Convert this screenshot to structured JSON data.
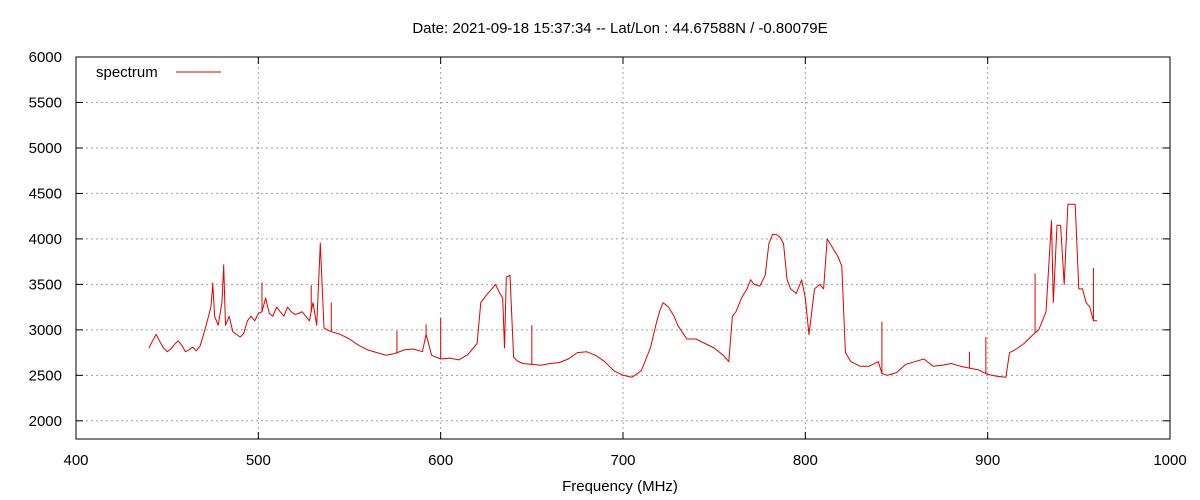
{
  "chart_data": {
    "type": "line",
    "title": "Date: 2021-09-18 15:37:34  --  Lat/Lon : 44.67588N / -0.80079E",
    "xlabel": "Frequency (MHz)",
    "ylabel": "",
    "xlim": [
      400,
      1000
    ],
    "ylim": [
      1800,
      6000
    ],
    "xticks": [
      400,
      500,
      600,
      700,
      800,
      900,
      1000
    ],
    "yticks": [
      2000,
      2500,
      3000,
      3500,
      4000,
      4500,
      5000,
      5500,
      6000
    ],
    "grid": true,
    "legend_position": "top-left",
    "series": [
      {
        "name": "spectrum",
        "color": "#e00000",
        "x": [
          440,
          442,
          444,
          446,
          448,
          450,
          452,
          454,
          456,
          458,
          460,
          462,
          464,
          466,
          468,
          470,
          472,
          474,
          475,
          476,
          478,
          480,
          481,
          482,
          484,
          486,
          488,
          490,
          492,
          494,
          496,
          498,
          500,
          502,
          504,
          506,
          508,
          510,
          512,
          514,
          516,
          518,
          520,
          522,
          524,
          526,
          528,
          530,
          532,
          534,
          536,
          538,
          540,
          545,
          550,
          555,
          560,
          565,
          570,
          575,
          580,
          585,
          590,
          592,
          595,
          600,
          605,
          610,
          615,
          620,
          622,
          625,
          628,
          630,
          632,
          634,
          635,
          636,
          638,
          640,
          642,
          645,
          650,
          655,
          660,
          665,
          670,
          675,
          680,
          685,
          690,
          695,
          700,
          705,
          710,
          715,
          718,
          720,
          722,
          725,
          728,
          730,
          735,
          740,
          745,
          750,
          755,
          758,
          760,
          762,
          765,
          768,
          770,
          772,
          775,
          778,
          780,
          782,
          784,
          786,
          788,
          790,
          792,
          795,
          798,
          800,
          802,
          805,
          808,
          810,
          812,
          815,
          818,
          820,
          822,
          825,
          830,
          835,
          840,
          842,
          845,
          850,
          855,
          860,
          865,
          870,
          875,
          880,
          885,
          890,
          895,
          900,
          905,
          910,
          912,
          915,
          920,
          925,
          928,
          930,
          932,
          935,
          936,
          938,
          940,
          942,
          944,
          946,
          948,
          950,
          952,
          954,
          956,
          958,
          960
        ],
        "y": [
          2800,
          2880,
          2950,
          2870,
          2800,
          2760,
          2790,
          2840,
          2880,
          2830,
          2760,
          2780,
          2810,
          2770,
          2820,
          2950,
          3100,
          3250,
          3500,
          3150,
          3050,
          3300,
          3700,
          3050,
          3150,
          2980,
          2950,
          2920,
          2960,
          3100,
          3150,
          3100,
          3180,
          3200,
          3350,
          3180,
          3150,
          3250,
          3200,
          3150,
          3250,
          3200,
          3170,
          3180,
          3200,
          3150,
          3100,
          3300,
          3050,
          3950,
          3020,
          3000,
          2980,
          2950,
          2900,
          2830,
          2780,
          2750,
          2720,
          2740,
          2780,
          2790,
          2760,
          2950,
          2720,
          2680,
          2690,
          2670,
          2730,
          2850,
          3300,
          3380,
          3450,
          3500,
          3420,
          3350,
          2800,
          3580,
          3600,
          2700,
          2660,
          2630,
          2620,
          2610,
          2630,
          2640,
          2680,
          2750,
          2760,
          2720,
          2650,
          2550,
          2500,
          2480,
          2550,
          2800,
          3050,
          3200,
          3300,
          3250,
          3150,
          3050,
          2900,
          2900,
          2850,
          2800,
          2720,
          2650,
          3150,
          3200,
          3350,
          3450,
          3550,
          3500,
          3480,
          3600,
          3950,
          4050,
          4050,
          4020,
          3950,
          3550,
          3450,
          3400,
          3550,
          3350,
          2950,
          3450,
          3500,
          3450,
          4000,
          3900,
          3800,
          3700,
          2750,
          2650,
          2600,
          2600,
          2650,
          2520,
          2500,
          2530,
          2620,
          2650,
          2680,
          2600,
          2610,
          2630,
          2600,
          2580,
          2560,
          2510,
          2490,
          2480,
          2750,
          2780,
          2850,
          2950,
          3000,
          3100,
          3200,
          4200,
          3300,
          4150,
          4150,
          3500,
          4380,
          4380,
          4380,
          3450,
          3450,
          3300,
          3250,
          3100,
          3100
        ],
        "spikes": [
          {
            "x": 475,
            "y": 3520
          },
          {
            "x": 481,
            "y": 3720
          },
          {
            "x": 502,
            "y": 3520
          },
          {
            "x": 529,
            "y": 3490
          },
          {
            "x": 534,
            "y": 3960
          },
          {
            "x": 540,
            "y": 3300
          },
          {
            "x": 576,
            "y": 2990
          },
          {
            "x": 592,
            "y": 3060
          },
          {
            "x": 600,
            "y": 3130
          },
          {
            "x": 650,
            "y": 3050
          },
          {
            "x": 842,
            "y": 3090
          },
          {
            "x": 890,
            "y": 2760
          },
          {
            "x": 899,
            "y": 2920
          },
          {
            "x": 926,
            "y": 3620
          },
          {
            "x": 958,
            "y": 3680
          }
        ]
      }
    ]
  }
}
